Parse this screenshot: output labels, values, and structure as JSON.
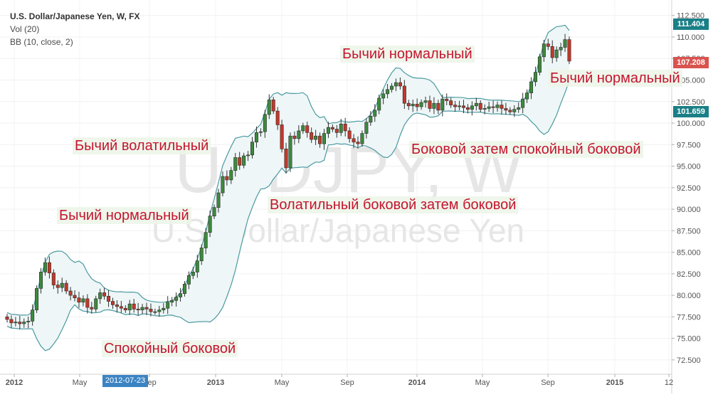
{
  "header": {
    "title": "U.S. Dollar/Japanese Yen, W, FX",
    "vol": "Vol (20)",
    "bb": "BB (10, close, 2)"
  },
  "watermark": {
    "symbol": "USDJPY, W",
    "name": "U.S. Dollar/Japanese Yen"
  },
  "annotations": [
    "Бычий нормальный",
    "Бычий нормальный",
    "Бычий волатильный",
    "Боковой затем спокойный боковой",
    "Бычий нормальный",
    "Волатильный боковой затем боковой",
    "Спокойный боковой"
  ],
  "price_tags": {
    "upper_band": "111.404",
    "last_price": "107.208",
    "lower_band": "101.659"
  },
  "cursor_date": "2012-07-23",
  "colors": {
    "up": "#3c8a3c",
    "down": "#c0392b",
    "band": "#4a9aa0",
    "band_fill": "#eef6f7",
    "watermark": "#e6e6e6",
    "upper_tag": "#1a7f87",
    "last_tag": "#d9534f",
    "lower_tag": "#1a7f87"
  },
  "chart_data": {
    "type": "candlestick",
    "title": "U.S. Dollar/Japanese Yen, W, FX",
    "indicators": [
      "Vol (20)",
      "BB (10, close, 2)"
    ],
    "x_tick_labels": [
      "2012",
      "May",
      "Sep",
      "2013",
      "May",
      "Sep",
      "2014",
      "May",
      "Sep",
      "2015",
      "12"
    ],
    "y_tick_labels": [
      "72.500",
      "75.000",
      "77.500",
      "80.000",
      "82.500",
      "85.000",
      "87.500",
      "90.000",
      "92.500",
      "95.000",
      "97.500",
      "100.000",
      "102.500",
      "105.000",
      "107.500",
      "110.000",
      "112.500"
    ],
    "ylim": [
      71.0,
      113.8
    ],
    "axis_position": "right",
    "grid": true,
    "close_series": [
      77.2,
      76.8,
      76.9,
      76.7,
      76.9,
      77.0,
      78.3,
      80.8,
      82.7,
      83.8,
      82.6,
      81.2,
      80.9,
      81.4,
      80.5,
      80.0,
      79.7,
      79.2,
      79.6,
      78.6,
      78.4,
      79.6,
      80.3,
      79.9,
      79.3,
      78.9,
      78.7,
      78.5,
      78.3,
      79.0,
      78.4,
      78.3,
      78.6,
      78.4,
      78.1,
      78.1,
      78.3,
      78.5,
      79.2,
      79.4,
      79.8,
      80.2,
      81.3,
      82.3,
      82.7,
      84.0,
      85.5,
      87.3,
      89.2,
      90.2,
      91.9,
      93.8,
      93.4,
      94.5,
      96.0,
      95.1,
      96.2,
      96.3,
      97.8,
      98.9,
      99.0,
      101.0,
      102.7,
      101.4,
      99.8,
      97.0,
      94.8,
      98.5,
      98.2,
      99.1,
      99.7,
      98.9,
      98.1,
      98.5,
      97.6,
      98.8,
      99.5,
      99.3,
      98.9,
      99.9,
      99.1,
      98.2,
      97.8,
      97.6,
      98.8,
      100.1,
      100.8,
      101.5,
      102.9,
      103.4,
      103.9,
      104.3,
      104.7,
      104.3,
      102.3,
      102.0,
      102.2,
      101.9,
      102.4,
      102.6,
      101.7,
      102.3,
      101.5,
      102.8,
      102.6,
      102.1,
      101.9,
      102.0,
      101.8,
      101.6,
      102.0,
      102.3,
      101.6,
      101.7,
      101.9,
      101.8,
      102.1,
      101.7,
      101.5,
      101.3,
      101.6,
      101.8,
      102.8,
      103.5,
      104.8,
      105.9,
      107.7,
      109.2,
      108.9,
      107.6,
      108.5,
      108.8,
      109.7,
      107.2
    ]
  }
}
